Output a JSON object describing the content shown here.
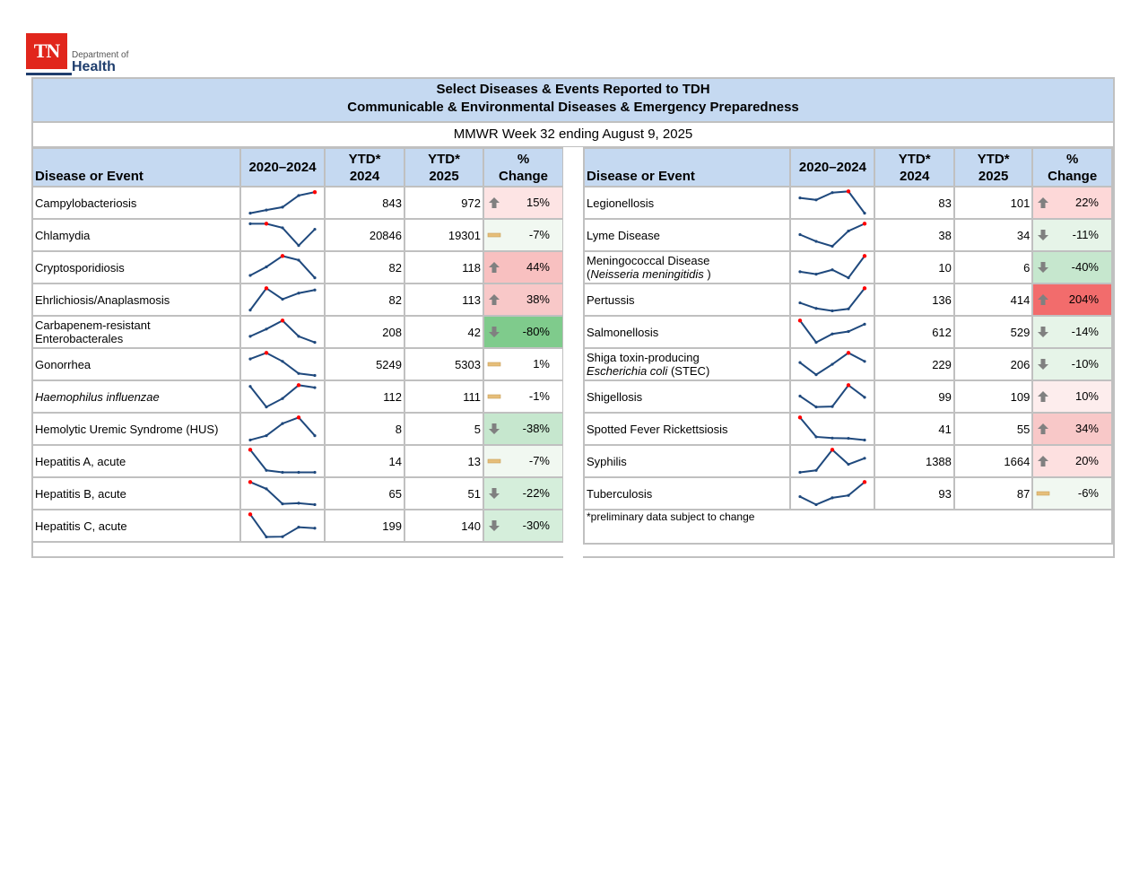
{
  "logo": {
    "badge": "TN",
    "line1": "Department of",
    "line2": "Health"
  },
  "title": {
    "line1": "Select Diseases & Events Reported to TDH",
    "line2": "Communicable & Environmental Diseases & Emergency Preparedness"
  },
  "subtitle": "MMWR Week 32 ending August 9, 2025",
  "columns": {
    "name": "Disease or Event",
    "trend": "2020–2024",
    "ytd2024_a": "YTD*",
    "ytd2024_b": "2024",
    "ytd2025_a": "YTD*",
    "ytd2025_b": "2025",
    "change_a": "%",
    "change_b": "Change"
  },
  "colors": {
    "header_bg": "#c5d9f1",
    "grid": "#c0c0c0",
    "spark_line": "#1f497d",
    "spark_max": "#ff0000",
    "up_light": "#fde4e4",
    "up_mid": "#f8c8c8",
    "up_strong": "#f4b6b6",
    "up_extreme": "#f26c6c",
    "flat": "#f1f8f1",
    "down_light": "#e6f4e8",
    "down_mid": "#c6e7ce",
    "down_strong": "#7fcb8c",
    "arrow": "#808080",
    "flat_bar": "#e6be7a"
  },
  "left_rows": [
    {
      "name": "Campylobacteriosis",
      "ytd2024": "843",
      "ytd2025": "972",
      "change": "15%",
      "icon": "up-arrow",
      "bg": "#fde4e4",
      "spark": [
        0.05,
        0.18,
        0.3,
        0.78,
        0.92
      ],
      "max_idx": 4
    },
    {
      "name": "Chlamydia",
      "ytd2024": "20846",
      "ytd2025": "19301",
      "change": "-7%",
      "icon": "flat-bar",
      "bg": "#f1f8f1",
      "spark": [
        0.95,
        0.95,
        0.78,
        0.05,
        0.72
      ],
      "max_idx": 1
    },
    {
      "name": "Cryptosporidiosis",
      "ytd2024": "82",
      "ytd2025": "118",
      "change": "44%",
      "icon": "up-arrow",
      "bg": "#f8c0c0",
      "spark": [
        0.15,
        0.5,
        0.95,
        0.78,
        0.05
      ],
      "max_idx": 2
    },
    {
      "name": "Ehrlichiosis/Anaplasmosis",
      "ytd2024": "82",
      "ytd2025": "113",
      "change": "38%",
      "icon": "up-arrow",
      "bg": "#f8c8c8",
      "spark": [
        0.05,
        0.95,
        0.5,
        0.75,
        0.88
      ],
      "max_idx": 1
    },
    {
      "name": "Carbapenem-resistant Enterobacterales",
      "ytd2024": "208",
      "ytd2025": "42",
      "change": "-80%",
      "icon": "down-arrow",
      "bg": "#7fcb8c",
      "spark": [
        0.3,
        0.6,
        0.95,
        0.3,
        0.05
      ],
      "max_idx": 2
    },
    {
      "name": "Gonorrhea",
      "ytd2024": "5249",
      "ytd2025": "5303",
      "change": "1%",
      "icon": "flat-bar",
      "bg": "#ffffff",
      "spark": [
        0.7,
        0.95,
        0.6,
        0.1,
        0.02
      ],
      "max_idx": 1
    },
    {
      "name": "Haemophilus influenzae",
      "italic": true,
      "ytd2024": "112",
      "ytd2025": "111",
      "change": "-1%",
      "icon": "flat-bar",
      "bg": "#ffffff",
      "spark": [
        0.9,
        0.05,
        0.4,
        0.95,
        0.85
      ],
      "max_idx": 3
    },
    {
      "name": "Hemolytic Uremic Syndrome (HUS)",
      "ytd2024": "8",
      "ytd2025": "5",
      "change": "-38%",
      "icon": "down-arrow",
      "bg": "#c6e7ce",
      "spark": [
        0.02,
        0.2,
        0.7,
        0.95,
        0.2
      ],
      "max_idx": 3
    },
    {
      "name": "Hepatitis A, acute",
      "ytd2024": "14",
      "ytd2025": "13",
      "change": "-7%",
      "icon": "flat-bar",
      "bg": "#f1f8f1",
      "spark": [
        0.95,
        0.1,
        0.02,
        0.02,
        0.02
      ],
      "max_idx": 0
    },
    {
      "name": "Hepatitis B, acute",
      "ytd2024": "65",
      "ytd2025": "51",
      "change": "-22%",
      "icon": "down-arrow",
      "bg": "#d5eedb",
      "spark": [
        0.95,
        0.67,
        0.05,
        0.08,
        0.02
      ],
      "max_idx": 0
    },
    {
      "name": "Hepatitis C, acute",
      "ytd2024": "199",
      "ytd2025": "140",
      "change": "-30%",
      "icon": "down-arrow",
      "bg": "#d5eedb",
      "spark": [
        0.95,
        0.02,
        0.03,
        0.42,
        0.38
      ],
      "max_idx": 0
    }
  ],
  "right_rows": [
    {
      "name": "Legionellosis",
      "ytd2024": "83",
      "ytd2025": "101",
      "change": "22%",
      "icon": "up-arrow",
      "bg": "#fdd8d8",
      "spark": [
        0.68,
        0.6,
        0.9,
        0.95,
        0.05
      ],
      "max_idx": 3
    },
    {
      "name": "Lyme Disease",
      "ytd2024": "38",
      "ytd2025": "34",
      "change": "-11%",
      "icon": "down-arrow",
      "bg": "#e6f4e8",
      "spark": [
        0.5,
        0.22,
        0.02,
        0.65,
        0.95
      ],
      "max_idx": 4
    },
    {
      "name": "Meningococcal Disease",
      "name2": "Neisseria meningitidis",
      "name2_italic": true,
      "ytd2024": "10",
      "ytd2025": "6",
      "change": "-40%",
      "icon": "down-arrow",
      "bg": "#c6e7ce",
      "spark": [
        0.3,
        0.2,
        0.38,
        0.05,
        0.95
      ],
      "max_idx": 4
    },
    {
      "name": "Pertussis",
      "ytd2024": "136",
      "ytd2025": "414",
      "change": "204%",
      "icon": "up-arrow",
      "bg": "#f26c6c",
      "spark": [
        0.35,
        0.12,
        0.02,
        0.1,
        0.95
      ],
      "max_idx": 4
    },
    {
      "name": "Salmonellosis",
      "ytd2024": "612",
      "ytd2025": "529",
      "change": "-14%",
      "icon": "down-arrow",
      "bg": "#e6f4e8",
      "spark": [
        0.95,
        0.05,
        0.4,
        0.5,
        0.8
      ],
      "max_idx": 0
    },
    {
      "name": "Shiga toxin-producing",
      "name2": "Escherichia coli",
      "name2_italic": true,
      "name2_suffix": " (STEC)",
      "ytd2024": "229",
      "ytd2025": "206",
      "change": "-10%",
      "icon": "down-arrow",
      "bg": "#e6f4e8",
      "spark": [
        0.55,
        0.05,
        0.48,
        0.95,
        0.6
      ],
      "max_idx": 3
    },
    {
      "name": "Shigellosis",
      "ytd2024": "99",
      "ytd2025": "109",
      "change": "10%",
      "icon": "up-arrow",
      "bg": "#fdeded",
      "spark": [
        0.5,
        0.05,
        0.07,
        0.95,
        0.45
      ],
      "max_idx": 3
    },
    {
      "name": "Spotted Fever Rickettsiosis",
      "ytd2024": "41",
      "ytd2025": "55",
      "change": "34%",
      "icon": "up-arrow",
      "bg": "#f8c8c8",
      "spark": [
        0.95,
        0.15,
        0.1,
        0.09,
        0.02
      ],
      "max_idx": 0
    },
    {
      "name": "Syphilis",
      "ytd2024": "1388",
      "ytd2025": "1664",
      "change": "20%",
      "icon": "up-arrow",
      "bg": "#fde0e0",
      "spark": [
        0.02,
        0.1,
        0.95,
        0.35,
        0.6
      ],
      "max_idx": 2
    },
    {
      "name": "Tuberculosis",
      "ytd2024": "93",
      "ytd2025": "87",
      "change": "-6%",
      "icon": "flat-bar",
      "bg": "#f1f8f1",
      "spark": [
        0.35,
        0.02,
        0.3,
        0.4,
        0.95
      ],
      "max_idx": 4
    }
  ],
  "footnote": "*preliminary data subject to change"
}
